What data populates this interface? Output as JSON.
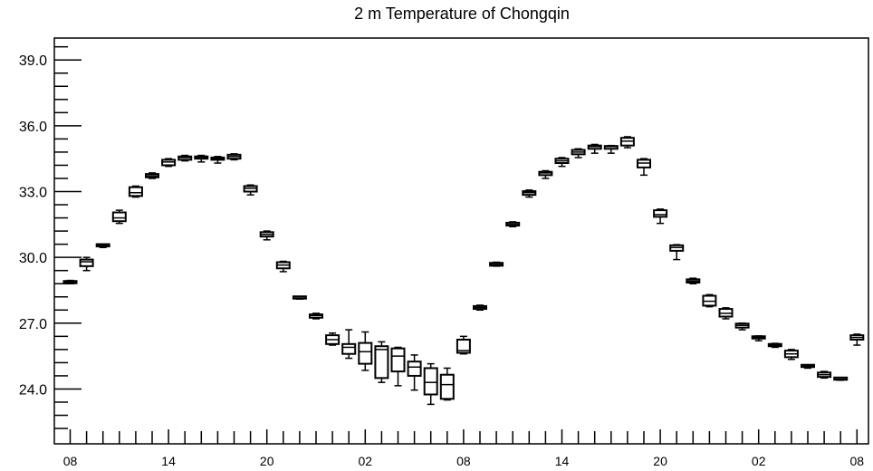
{
  "chart_data": {
    "type": "boxplot",
    "title": "2 m Temperature of Chongqin",
    "xlabel": "",
    "ylabel": "",
    "ylim": [
      21.5,
      40.0
    ],
    "yticks": [
      "24.0",
      "27.0",
      "30.0",
      "33.0",
      "36.0",
      "39.0"
    ],
    "xticks": [
      "08",
      "14",
      "20",
      "02",
      "08",
      "14",
      "20",
      "02",
      "08"
    ],
    "xtick_positions": [
      0,
      6,
      12,
      18,
      24,
      30,
      36,
      42,
      48
    ],
    "grid": false,
    "series": [
      {
        "boxes": [
          {
            "x": 0,
            "min": 28.8,
            "q1": 28.82,
            "median": 28.87,
            "q3": 28.92,
            "max": 28.95
          },
          {
            "x": 1,
            "min": 29.4,
            "q1": 29.6,
            "median": 29.8,
            "q3": 29.9,
            "max": 30.0
          },
          {
            "x": 2,
            "min": 30.45,
            "q1": 30.5,
            "median": 30.55,
            "q3": 30.58,
            "max": 30.6
          },
          {
            "x": 3,
            "min": 31.55,
            "q1": 31.65,
            "median": 31.8,
            "q3": 32.05,
            "max": 32.15
          },
          {
            "x": 4,
            "min": 32.75,
            "q1": 32.8,
            "median": 32.95,
            "q3": 33.2,
            "max": 33.25
          },
          {
            "x": 5,
            "min": 33.6,
            "q1": 33.65,
            "median": 33.72,
            "q3": 33.8,
            "max": 33.85
          },
          {
            "x": 6,
            "min": 34.15,
            "q1": 34.2,
            "median": 34.35,
            "q3": 34.45,
            "max": 34.5
          },
          {
            "x": 7,
            "min": 34.4,
            "q1": 34.45,
            "median": 34.55,
            "q3": 34.6,
            "max": 34.65
          },
          {
            "x": 8,
            "min": 34.35,
            "q1": 34.5,
            "median": 34.55,
            "q3": 34.6,
            "max": 34.65
          },
          {
            "x": 9,
            "min": 34.3,
            "q1": 34.45,
            "median": 34.5,
            "q3": 34.55,
            "max": 34.6
          },
          {
            "x": 10,
            "min": 34.45,
            "q1": 34.5,
            "median": 34.6,
            "q3": 34.68,
            "max": 34.72
          },
          {
            "x": 11,
            "min": 32.85,
            "q1": 33.0,
            "median": 33.15,
            "q3": 33.25,
            "max": 33.3
          },
          {
            "x": 12,
            "min": 30.8,
            "q1": 30.95,
            "median": 31.05,
            "q3": 31.15,
            "max": 31.2
          },
          {
            "x": 13,
            "min": 29.35,
            "q1": 29.5,
            "median": 29.65,
            "q3": 29.78,
            "max": 29.82
          },
          {
            "x": 14,
            "min": 28.1,
            "q1": 28.12,
            "median": 28.15,
            "q3": 28.18,
            "max": 28.2
          },
          {
            "x": 15,
            "min": 27.2,
            "q1": 27.25,
            "median": 27.35,
            "q3": 27.4,
            "max": 27.45
          },
          {
            "x": 16,
            "min": 26.0,
            "q1": 26.05,
            "median": 26.25,
            "q3": 26.45,
            "max": 26.55
          },
          {
            "x": 17,
            "min": 25.4,
            "q1": 25.6,
            "median": 25.9,
            "q3": 26.05,
            "max": 26.7
          },
          {
            "x": 18,
            "min": 24.85,
            "q1": 25.15,
            "median": 25.7,
            "q3": 26.1,
            "max": 26.6
          },
          {
            "x": 19,
            "min": 24.3,
            "q1": 24.5,
            "median": 25.8,
            "q3": 25.95,
            "max": 26.15
          },
          {
            "x": 20,
            "min": 24.15,
            "q1": 24.8,
            "median": 25.5,
            "q3": 25.85,
            "max": 25.9
          },
          {
            "x": 21,
            "min": 23.95,
            "q1": 24.6,
            "median": 25.0,
            "q3": 25.25,
            "max": 25.55
          },
          {
            "x": 22,
            "min": 23.3,
            "q1": 23.75,
            "median": 24.3,
            "q3": 24.95,
            "max": 25.15
          },
          {
            "x": 23,
            "min": 23.5,
            "q1": 23.55,
            "median": 24.2,
            "q3": 24.65,
            "max": 24.95
          },
          {
            "x": 24,
            "min": 25.6,
            "q1": 25.65,
            "median": 25.75,
            "q3": 26.25,
            "max": 26.4
          },
          {
            "x": 25,
            "min": 27.6,
            "q1": 27.65,
            "median": 27.72,
            "q3": 27.78,
            "max": 27.82
          },
          {
            "x": 26,
            "min": 29.6,
            "q1": 29.62,
            "median": 29.68,
            "q3": 29.75,
            "max": 29.78
          },
          {
            "x": 27,
            "min": 31.4,
            "q1": 31.45,
            "median": 31.5,
            "q3": 31.58,
            "max": 31.62
          },
          {
            "x": 28,
            "min": 32.75,
            "q1": 32.85,
            "median": 32.95,
            "q3": 33.02,
            "max": 33.07
          },
          {
            "x": 29,
            "min": 33.6,
            "q1": 33.75,
            "median": 33.85,
            "q3": 33.9,
            "max": 33.95
          },
          {
            "x": 30,
            "min": 34.15,
            "q1": 34.3,
            "median": 34.4,
            "q3": 34.5,
            "max": 34.55
          },
          {
            "x": 31,
            "min": 34.55,
            "q1": 34.7,
            "median": 34.8,
            "q3": 34.9,
            "max": 34.95
          },
          {
            "x": 32,
            "min": 34.75,
            "q1": 34.95,
            "median": 35.05,
            "q3": 35.1,
            "max": 35.15
          },
          {
            "x": 33,
            "min": 34.75,
            "q1": 34.95,
            "median": 35.05,
            "q3": 35.08,
            "max": 35.1
          },
          {
            "x": 34,
            "min": 35.0,
            "q1": 35.1,
            "median": 35.3,
            "q3": 35.45,
            "max": 35.5
          },
          {
            "x": 35,
            "min": 33.75,
            "q1": 34.1,
            "median": 34.3,
            "q3": 34.45,
            "max": 34.5
          },
          {
            "x": 36,
            "min": 31.55,
            "q1": 31.85,
            "median": 31.95,
            "q3": 32.15,
            "max": 32.2
          },
          {
            "x": 37,
            "min": 29.9,
            "q1": 30.3,
            "median": 30.45,
            "q3": 30.55,
            "max": 30.58
          },
          {
            "x": 38,
            "min": 28.8,
            "q1": 28.85,
            "median": 28.92,
            "q3": 29.0,
            "max": 29.05
          },
          {
            "x": 39,
            "min": 27.75,
            "q1": 27.8,
            "median": 28.0,
            "q3": 28.25,
            "max": 28.3
          },
          {
            "x": 40,
            "min": 27.2,
            "q1": 27.3,
            "median": 27.45,
            "q3": 27.65,
            "max": 27.7
          },
          {
            "x": 41,
            "min": 26.7,
            "q1": 26.8,
            "median": 26.9,
            "q3": 26.98,
            "max": 27.0
          },
          {
            "x": 42,
            "min": 26.2,
            "q1": 26.3,
            "median": 26.35,
            "q3": 26.4,
            "max": 26.42
          },
          {
            "x": 43,
            "min": 25.9,
            "q1": 25.95,
            "median": 26.0,
            "q3": 26.05,
            "max": 26.08
          },
          {
            "x": 44,
            "min": 25.35,
            "q1": 25.45,
            "median": 25.6,
            "q3": 25.75,
            "max": 25.8
          },
          {
            "x": 45,
            "min": 24.95,
            "q1": 25.0,
            "median": 25.05,
            "q3": 25.08,
            "max": 25.1
          },
          {
            "x": 46,
            "min": 24.5,
            "q1": 24.55,
            "median": 24.65,
            "q3": 24.75,
            "max": 24.8
          },
          {
            "x": 47,
            "min": 24.4,
            "q1": 24.42,
            "median": 24.45,
            "q3": 24.47,
            "max": 24.5
          },
          {
            "x": 48,
            "min": 26.0,
            "q1": 26.25,
            "median": 26.35,
            "q3": 26.45,
            "max": 26.5
          }
        ]
      }
    ]
  }
}
